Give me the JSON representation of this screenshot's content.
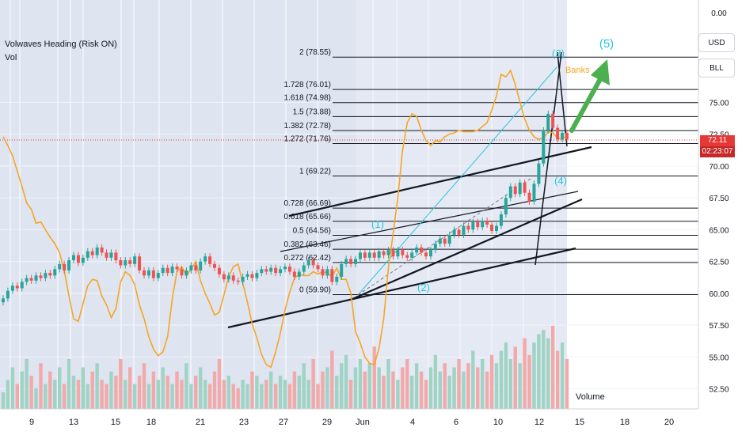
{
  "indicator": {
    "title": "Volwaves Heading (Risk ON)",
    "sub": "Vol"
  },
  "scale_buttons": {
    "currency": "USD",
    "unit": "BLL"
  },
  "last_price": {
    "value": "72.11",
    "countdown": "02:23:07"
  },
  "chart_data": {
    "type": "candlestick",
    "title": "",
    "xlabel": "",
    "ylabel": "",
    "ylim": [
      51.8,
      80.8
    ],
    "y_ticks": [
      "0.00",
      "75.00",
      "72.50",
      "70.00",
      "67.50",
      "65.00",
      "62.50",
      "60.00",
      "57.50",
      "55.00",
      "52.50"
    ],
    "x_ticks": [
      "9",
      "13",
      "15",
      "18",
      "21",
      "23",
      "27",
      "29",
      "Jun",
      "4",
      "6",
      "10",
      "12",
      "15",
      "18",
      "20"
    ],
    "fib_levels": [
      {
        "label": "2 (78.55)",
        "value": 78.55
      },
      {
        "label": "1.728 (76.01)",
        "value": 76.01
      },
      {
        "label": "1.618 (74.98)",
        "value": 74.98
      },
      {
        "label": "1.5 (73.88)",
        "value": 73.88
      },
      {
        "label": "1.382 (72.78)",
        "value": 72.78
      },
      {
        "label": "1.272 (71.76)",
        "value": 71.76
      },
      {
        "label": "1 (69.22)",
        "value": 69.22
      },
      {
        "label": "0.728 (66.69)",
        "value": 66.69
      },
      {
        "label": "0.618 (65.66)",
        "value": 65.66
      },
      {
        "label": "0.5 (64.56)",
        "value": 64.56
      },
      {
        "label": "0.382 (63.46)",
        "value": 63.46
      },
      {
        "label": "0.272 (62.42)",
        "value": 62.42
      },
      {
        "label": "0 (59.90)",
        "value": 59.9
      }
    ],
    "wave_labels": [
      "(1)",
      "(2)",
      "(3)",
      "(4)",
      "(5)"
    ],
    "annotations": [
      "Banks",
      "Volume"
    ],
    "price_series": [
      59.6,
      60.2,
      60.6,
      60.4,
      60.9,
      61.2,
      61.0,
      61.4,
      61.2,
      61.6,
      61.4,
      61.9,
      62.3,
      61.8,
      62.6,
      63.0,
      62.4,
      62.8,
      63.3,
      63.0,
      63.6,
      63.2,
      62.8,
      63.2,
      62.6,
      62.2,
      62.6,
      62.3,
      62.9,
      61.8,
      61.4,
      61.8,
      61.2,
      61.6,
      62.0,
      61.6,
      62.1,
      61.9,
      61.4,
      61.8,
      62.2,
      61.8,
      62.5,
      62.9,
      62.3,
      62.0,
      61.5,
      61.1,
      61.4,
      61.0,
      60.9,
      61.3,
      61.5,
      61.2,
      61.6,
      61.9,
      61.7,
      62.0,
      61.6,
      61.9,
      62.1,
      61.7,
      61.3,
      61.7,
      62.2,
      62.6,
      62.2,
      61.9,
      61.4,
      61.9,
      60.9,
      61.3,
      62.3,
      62.7,
      62.3,
      62.7,
      63.2,
      62.8,
      63.2,
      62.8,
      63.3,
      63.0,
      63.4,
      62.9,
      63.4,
      63.0,
      62.8,
      63.2,
      63.6,
      63.2,
      62.9,
      63.4,
      63.9,
      64.3,
      63.9,
      64.6,
      65.0,
      64.6,
      65.3,
      65.0,
      65.6,
      65.2,
      65.7,
      65.4,
      64.9,
      65.3,
      66.2,
      67.5,
      68.4,
      67.8,
      68.7,
      67.9,
      67.2,
      68.6,
      70.2,
      72.8,
      74.1,
      73.0,
      72.1,
      72.6,
      72.1
    ],
    "volume_scale": "relative 0-1",
    "volume": [
      0.2,
      0.35,
      0.5,
      0.3,
      0.45,
      0.6,
      0.4,
      0.25,
      0.55,
      0.3,
      0.45,
      0.35,
      0.5,
      0.3,
      0.6,
      0.4,
      0.35,
      0.5,
      0.3,
      0.45,
      0.55,
      0.35,
      0.3,
      0.45,
      0.4,
      0.6,
      0.35,
      0.5,
      0.3,
      0.4,
      0.55,
      0.3,
      0.45,
      0.35,
      0.5,
      0.4,
      0.3,
      0.45,
      0.35,
      0.55,
      0.3,
      0.4,
      0.5,
      0.35,
      0.3,
      0.45,
      0.6,
      0.35,
      0.4,
      0.3,
      0.25,
      0.35,
      0.3,
      0.45,
      0.4,
      0.3,
      0.35,
      0.45,
      0.3,
      0.4,
      0.35,
      0.3,
      0.45,
      0.4,
      0.55,
      0.35,
      0.6,
      0.3,
      0.45,
      0.5,
      0.7,
      0.4,
      0.55,
      0.65,
      0.35,
      0.5,
      0.6,
      0.45,
      0.55,
      0.75,
      0.5,
      0.4,
      0.6,
      0.45,
      0.35,
      0.5,
      0.6,
      0.4,
      0.55,
      0.45,
      0.35,
      0.5,
      0.65,
      0.45,
      0.55,
      0.4,
      0.5,
      0.6,
      0.45,
      0.55,
      0.7,
      0.5,
      0.6,
      0.45,
      0.65,
      0.55,
      0.7,
      0.8,
      0.6,
      0.75,
      0.55,
      0.85,
      0.65,
      0.8,
      0.9,
      0.95,
      0.85,
      1.0,
      0.7,
      0.8,
      0.6
    ],
    "oscillator": [
      72.3,
      71.6,
      70.8,
      69.6,
      68.4,
      67.1,
      66.6,
      65.5,
      65.6,
      65.0,
      64.4,
      63.9,
      63.2,
      61.8,
      59.8,
      58.0,
      57.8,
      59.2,
      60.6,
      61.1,
      61.0,
      59.8,
      59.1,
      58.1,
      58.8,
      60.9,
      61.7,
      61.4,
      60.7,
      59.1,
      58.0,
      56.6,
      55.6,
      55.1,
      55.4,
      56.6,
      59.6,
      61.7,
      62.1,
      61.4,
      61.9,
      62.5,
      61.0,
      60.0,
      59.2,
      58.3,
      58.5,
      59.9,
      61.3,
      62.1,
      62.3,
      60.8,
      59.3,
      57.6,
      56.5,
      55.2,
      54.4,
      54.2,
      55.4,
      56.9,
      58.7,
      60.1,
      61.2,
      61.5,
      61.4,
      61.4,
      61.7,
      61.5,
      61.7,
      61.6,
      61.3,
      62.0,
      61.1,
      61.1,
      60.0,
      57.0,
      56.1,
      55.0,
      54.5,
      54.4,
      55.7,
      58.0,
      62.0,
      64.7,
      67.5,
      71.2,
      73.4,
      74.1,
      73.9,
      72.8,
      72.0,
      71.6,
      72.0,
      71.9,
      72.3,
      72.5,
      72.6,
      72.8,
      72.7,
      72.7,
      72.7,
      72.8,
      73.1,
      73.4,
      74.4,
      75.5,
      77.2,
      77.0,
      77.5,
      76.4,
      75.0,
      73.7,
      72.8,
      72.3,
      72.1,
      72.2,
      72.7,
      72.6,
      72.2,
      72.1,
      72.4
    ]
  }
}
